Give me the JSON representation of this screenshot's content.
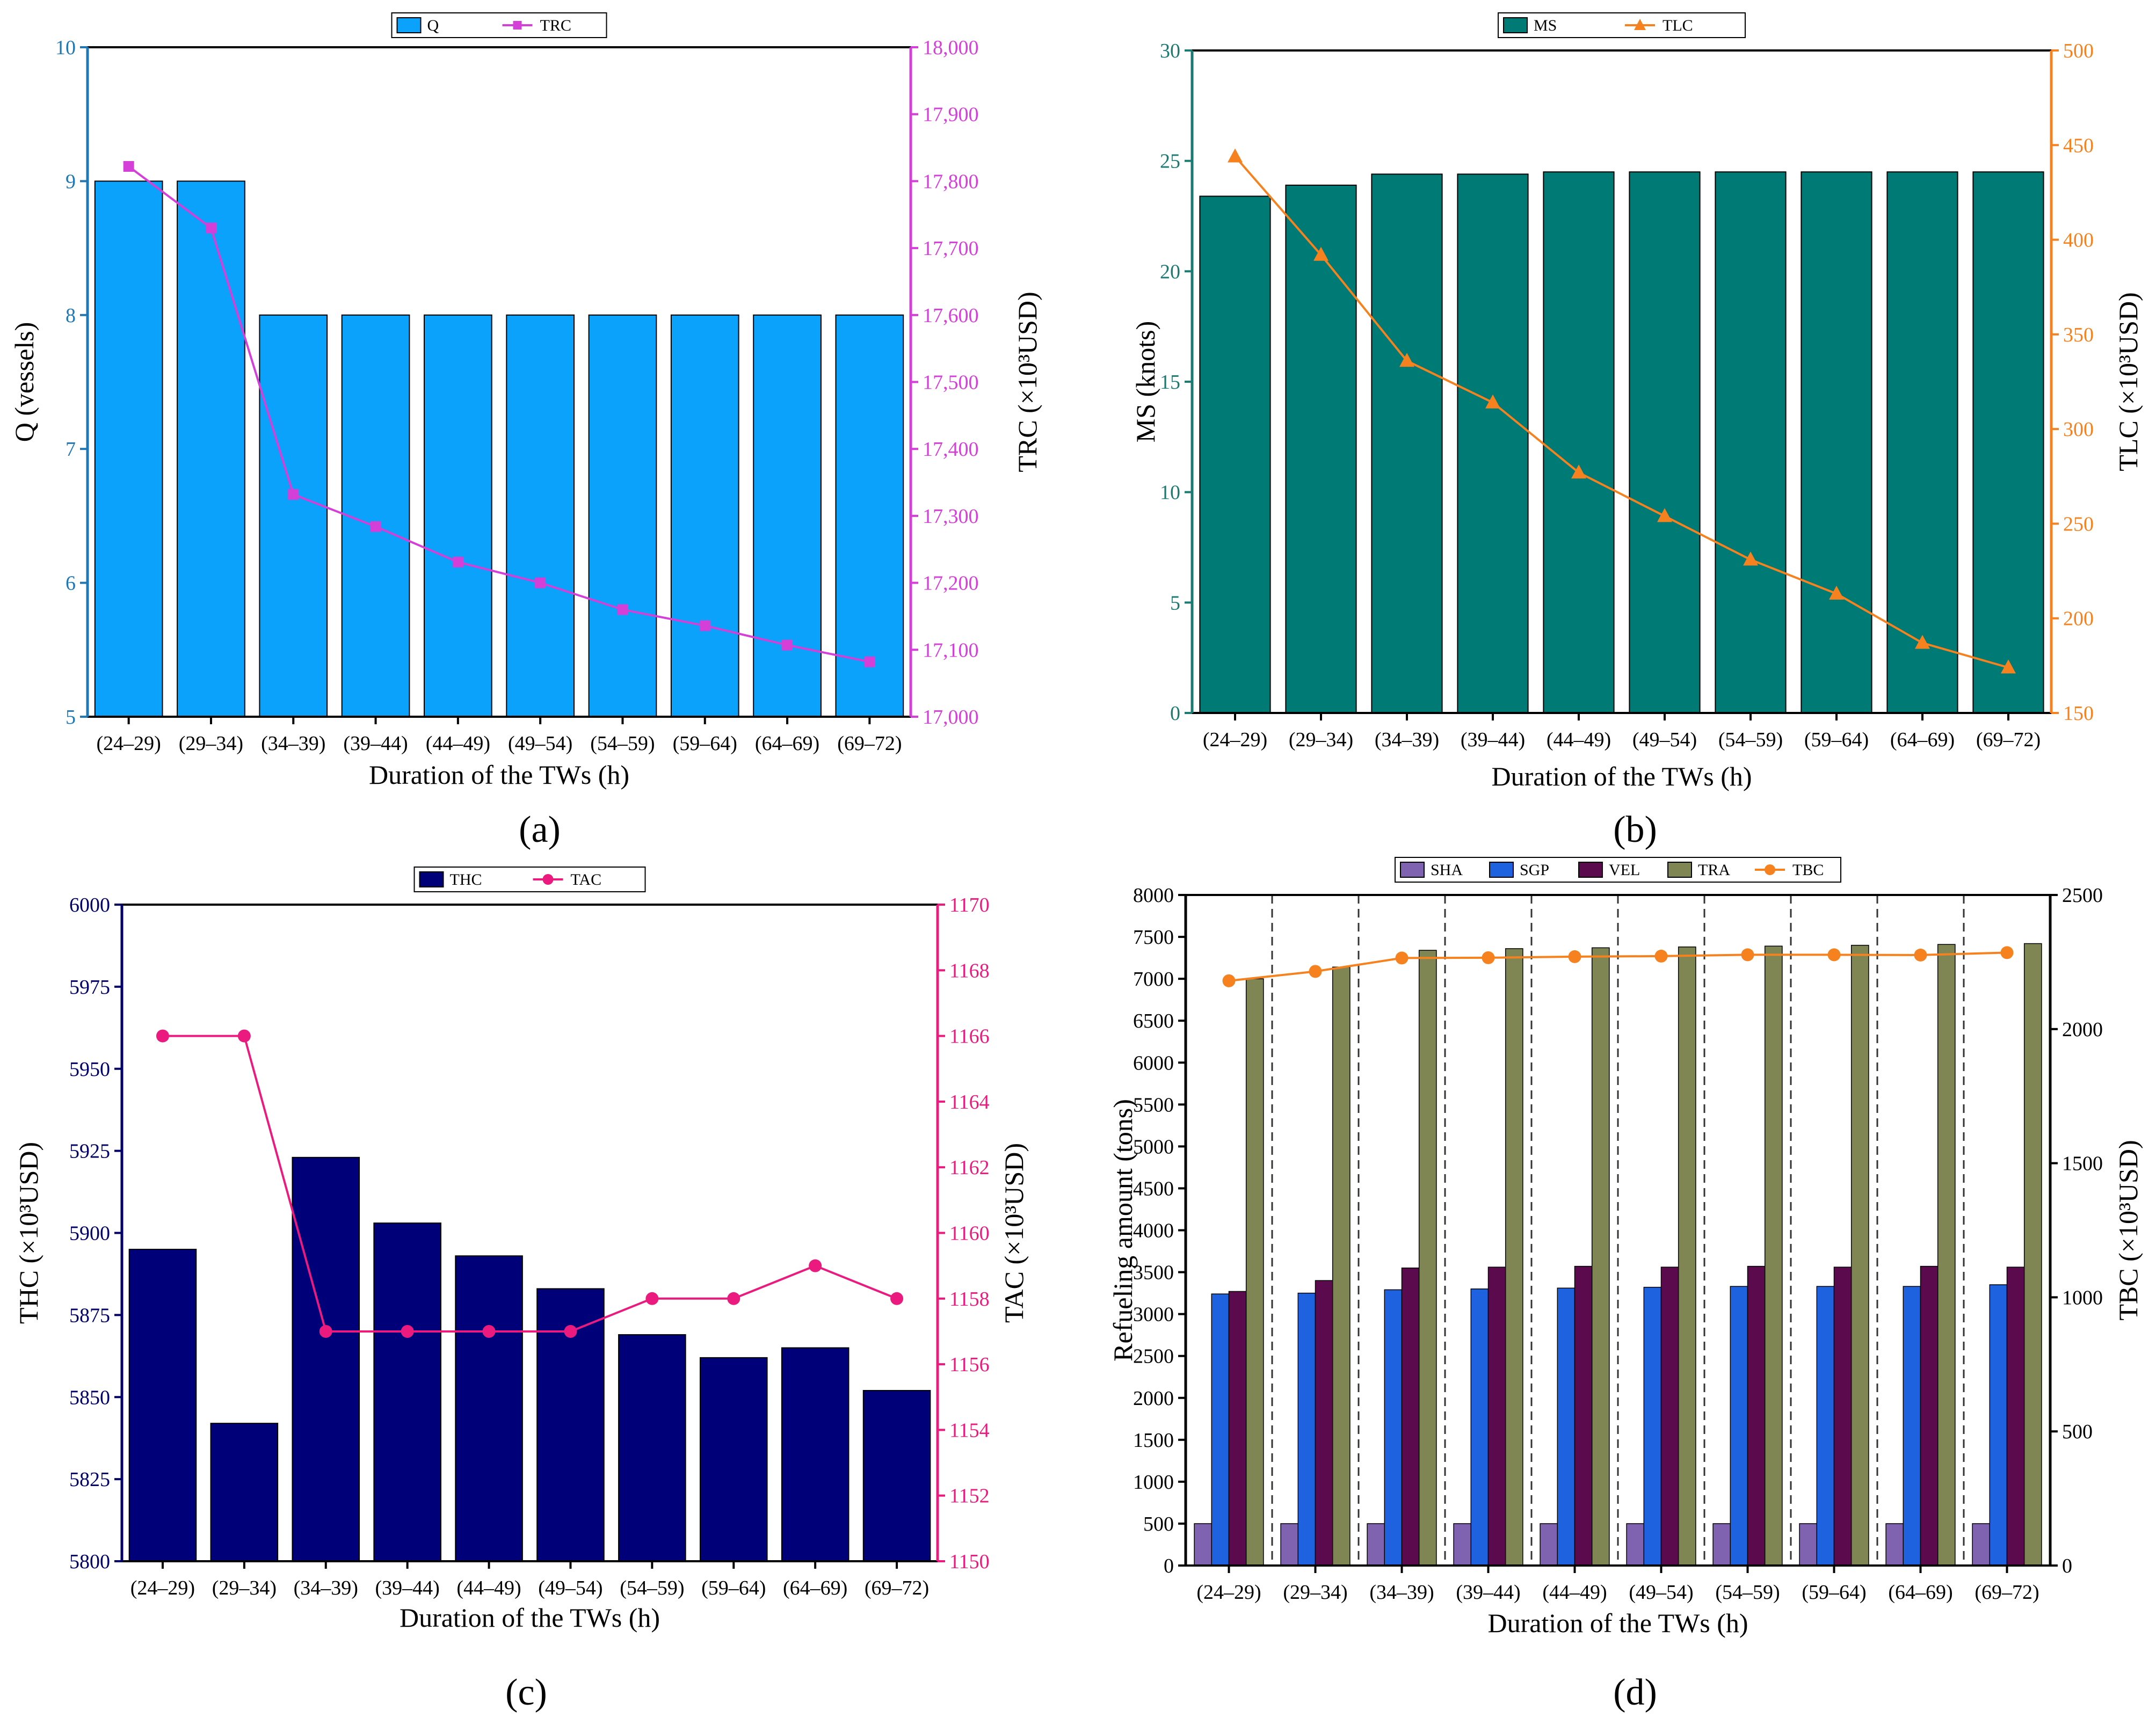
{
  "figure": {
    "panel_labels": [
      "(a)",
      "(b)",
      "(c)",
      "(d)"
    ]
  },
  "chart_data": [
    {
      "type": "bar",
      "panel": "(a)",
      "title": "",
      "xlabel": "Duration of the TWs (h)",
      "ylabel": "Q (vessels)",
      "y2label": "TRC (×10³USD)",
      "categories": [
        "(24–29)",
        "(29–34)",
        "(34–39)",
        "(39–44)",
        "(44–49)",
        "(49–54)",
        "(54–59)",
        "(59–64)",
        "(64–69)",
        "(69–72)"
      ],
      "ylim": [
        5,
        10
      ],
      "yticks": [
        "5",
        "6",
        "7",
        "8",
        "9",
        "10"
      ],
      "y2lim": [
        17000,
        18000
      ],
      "y2ticks": [
        "17,000",
        "17,100",
        "17,200",
        "17,300",
        "17,400",
        "17,500",
        "17,600",
        "17,700",
        "17,800",
        "17,900",
        "18,000"
      ],
      "left_axis_color": "#1f77b4",
      "right_axis_color": "#d43fd8",
      "legend_position": "top-center",
      "series": [
        {
          "name": "Q",
          "kind": "bar",
          "axis": "left",
          "color": "#0aa2fa",
          "values": [
            9,
            9,
            8,
            8,
            8,
            8,
            8,
            8,
            8,
            8
          ]
        },
        {
          "name": "TRC",
          "kind": "line",
          "marker": "square",
          "axis": "right",
          "color": "#d43fd8",
          "values": [
            17822,
            17730,
            17332,
            17284,
            17231,
            17200,
            17160,
            17136,
            17107,
            17082
          ]
        }
      ]
    },
    {
      "type": "bar",
      "panel": "(b)",
      "title": "",
      "xlabel": "Duration of the TWs (h)",
      "ylabel": "MS (knots)",
      "y2label": "TLC (×10³USD)",
      "categories": [
        "(24–29)",
        "(29–34)",
        "(34–39)",
        "(39–44)",
        "(44–49)",
        "(49–54)",
        "(54–59)",
        "(59–64)",
        "(64–69)",
        "(69–72)"
      ],
      "ylim": [
        0,
        30
      ],
      "yticks": [
        "0",
        "5",
        "10",
        "15",
        "20",
        "25",
        "30"
      ],
      "y2lim": [
        150,
        500
      ],
      "y2ticks": [
        "150",
        "200",
        "250",
        "300",
        "350",
        "400",
        "450",
        "500"
      ],
      "left_axis_color": "#1b7a72",
      "right_axis_color": "#f5821f",
      "legend_position": "top-center",
      "series": [
        {
          "name": "MS",
          "kind": "bar",
          "axis": "left",
          "color": "#007a74",
          "values": [
            23.4,
            23.9,
            24.4,
            24.4,
            24.5,
            24.5,
            24.5,
            24.5,
            24.5,
            24.5
          ]
        },
        {
          "name": "TLC",
          "kind": "line",
          "marker": "triangle",
          "axis": "right",
          "color": "#f5821f",
          "values": [
            444,
            392,
            336,
            314,
            277,
            254,
            231,
            213,
            187,
            174
          ]
        }
      ]
    },
    {
      "type": "bar",
      "panel": "(c)",
      "title": "",
      "xlabel": "Duration of the TWs (h)",
      "ylabel": "THC (×10³USD)",
      "y2label": "TAC (×10³USD)",
      "categories": [
        "(24–29)",
        "(29–34)",
        "(34–39)",
        "(39–44)",
        "(44–49)",
        "(49–54)",
        "(54–59)",
        "(59–64)",
        "(64–69)",
        "(69–72)"
      ],
      "ylim": [
        5800,
        6000
      ],
      "yticks": [
        "5800",
        "5825",
        "5850",
        "5875",
        "5900",
        "5925",
        "5950",
        "5975",
        "6000"
      ],
      "y2lim": [
        1150,
        1170
      ],
      "y2ticks": [
        "1150",
        "1152",
        "1154",
        "1156",
        "1158",
        "1160",
        "1162",
        "1164",
        "1166",
        "1168",
        "1170"
      ],
      "left_axis_color": "#000066",
      "right_axis_color": "#ea1a7f",
      "legend_position": "top-center",
      "series": [
        {
          "name": "THC",
          "kind": "bar",
          "axis": "left",
          "color": "#000078",
          "values": [
            5895,
            5842,
            5923,
            5903,
            5893,
            5883,
            5869,
            5862,
            5865,
            5852
          ]
        },
        {
          "name": "TAC",
          "kind": "line",
          "marker": "circle",
          "axis": "right",
          "color": "#ea1a7f",
          "values": [
            1166,
            1166,
            1157,
            1157,
            1157,
            1157,
            1158,
            1158,
            1159,
            1158
          ]
        }
      ]
    },
    {
      "type": "bar",
      "panel": "(d)",
      "title": "",
      "xlabel": "Duration of the TWs (h)",
      "ylabel": "Refueling amount (tons)",
      "y2label": "TBC (×10³USD)",
      "categories": [
        "(24–29)",
        "(29–34)",
        "(34–39)",
        "(39–44)",
        "(44–49)",
        "(49–54)",
        "(54–59)",
        "(59–64)",
        "(64–69)",
        "(69–72)"
      ],
      "ylim": [
        0,
        8000
      ],
      "yticks": [
        "0",
        "500",
        "1000",
        "1500",
        "2000",
        "2500",
        "3000",
        "3500",
        "4000",
        "4500",
        "5000",
        "5500",
        "6000",
        "6500",
        "7000",
        "7500",
        "8000"
      ],
      "y2lim": [
        0,
        2500
      ],
      "y2ticks": [
        "0",
        "500",
        "1000",
        "1500",
        "2000",
        "2500"
      ],
      "left_axis_color": "#000000",
      "right_axis_color": "#000000",
      "legend_position": "top-center",
      "separators": true,
      "series": [
        {
          "name": "SHA",
          "kind": "bar",
          "axis": "left",
          "color": "#7f62b0",
          "values": [
            500,
            500,
            500,
            500,
            500,
            500,
            500,
            500,
            500,
            500
          ]
        },
        {
          "name": "SGP",
          "kind": "bar",
          "axis": "left",
          "color": "#1f62e0",
          "values": [
            3240,
            3250,
            3290,
            3300,
            3310,
            3320,
            3330,
            3330,
            3330,
            3350
          ]
        },
        {
          "name": "VEL",
          "kind": "bar",
          "axis": "left",
          "color": "#5c0a4e",
          "values": [
            3270,
            3400,
            3550,
            3560,
            3570,
            3560,
            3570,
            3560,
            3570,
            3560
          ]
        },
        {
          "name": "TRA",
          "kind": "bar",
          "axis": "left",
          "color": "#7f8654",
          "values": [
            7000,
            7140,
            7340,
            7360,
            7370,
            7380,
            7390,
            7400,
            7410,
            7420
          ]
        },
        {
          "name": "TBC",
          "kind": "line",
          "marker": "circle",
          "axis": "right",
          "color": "#f5821f",
          "values": [
            2180,
            2215,
            2265,
            2266,
            2270,
            2272,
            2277,
            2277,
            2276,
            2285
          ]
        }
      ]
    }
  ]
}
